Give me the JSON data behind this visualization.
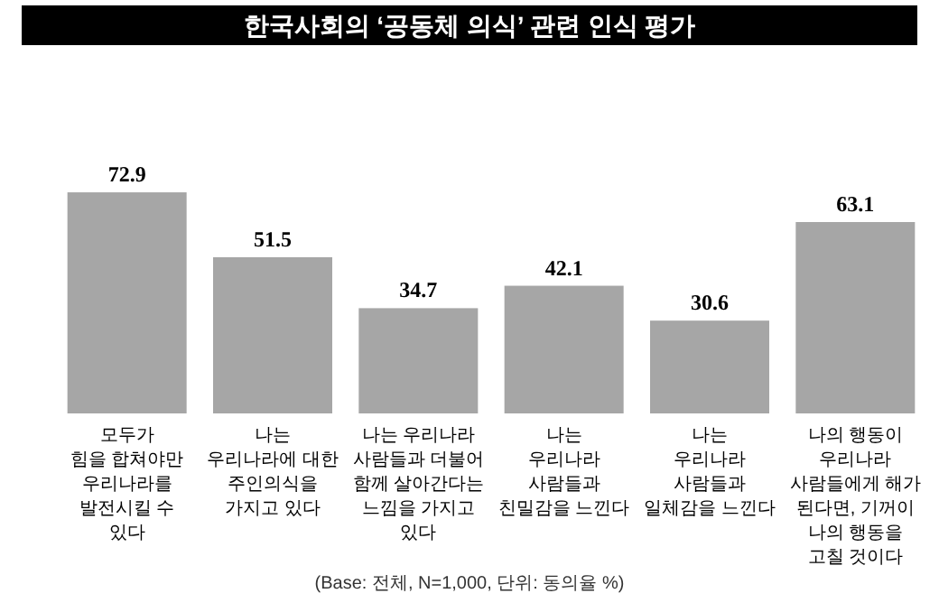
{
  "chart_data": {
    "type": "bar",
    "title": "한국사회의 ‘공동체 의식’ 관련 인식 평가",
    "categories": [
      "모두가\n힘을 합쳐야만\n우리나라를\n발전시킬 수\n있다",
      "나는\n우리나라에 대한\n주인의식을\n가지고 있다",
      "나는 우리나라\n사람들과 더불어\n함께 살아간다는\n느낌을 가지고\n있다",
      "나는\n우리나라\n사람들과\n친밀감을 느낀다",
      "나는\n우리나라\n사람들과\n일체감을 느낀다",
      "나의 행동이\n우리나라\n사람들에게 해가\n된다면, 기꺼이\n나의 행동을\n고칠 것이다"
    ],
    "values": [
      72.9,
      51.5,
      34.7,
      42.1,
      30.6,
      63.1
    ],
    "color": "#a6a6a6",
    "data_labels": true,
    "annotations": [
      "(Base: 전체, N=1,000, 단위: 동의율 %)"
    ]
  }
}
